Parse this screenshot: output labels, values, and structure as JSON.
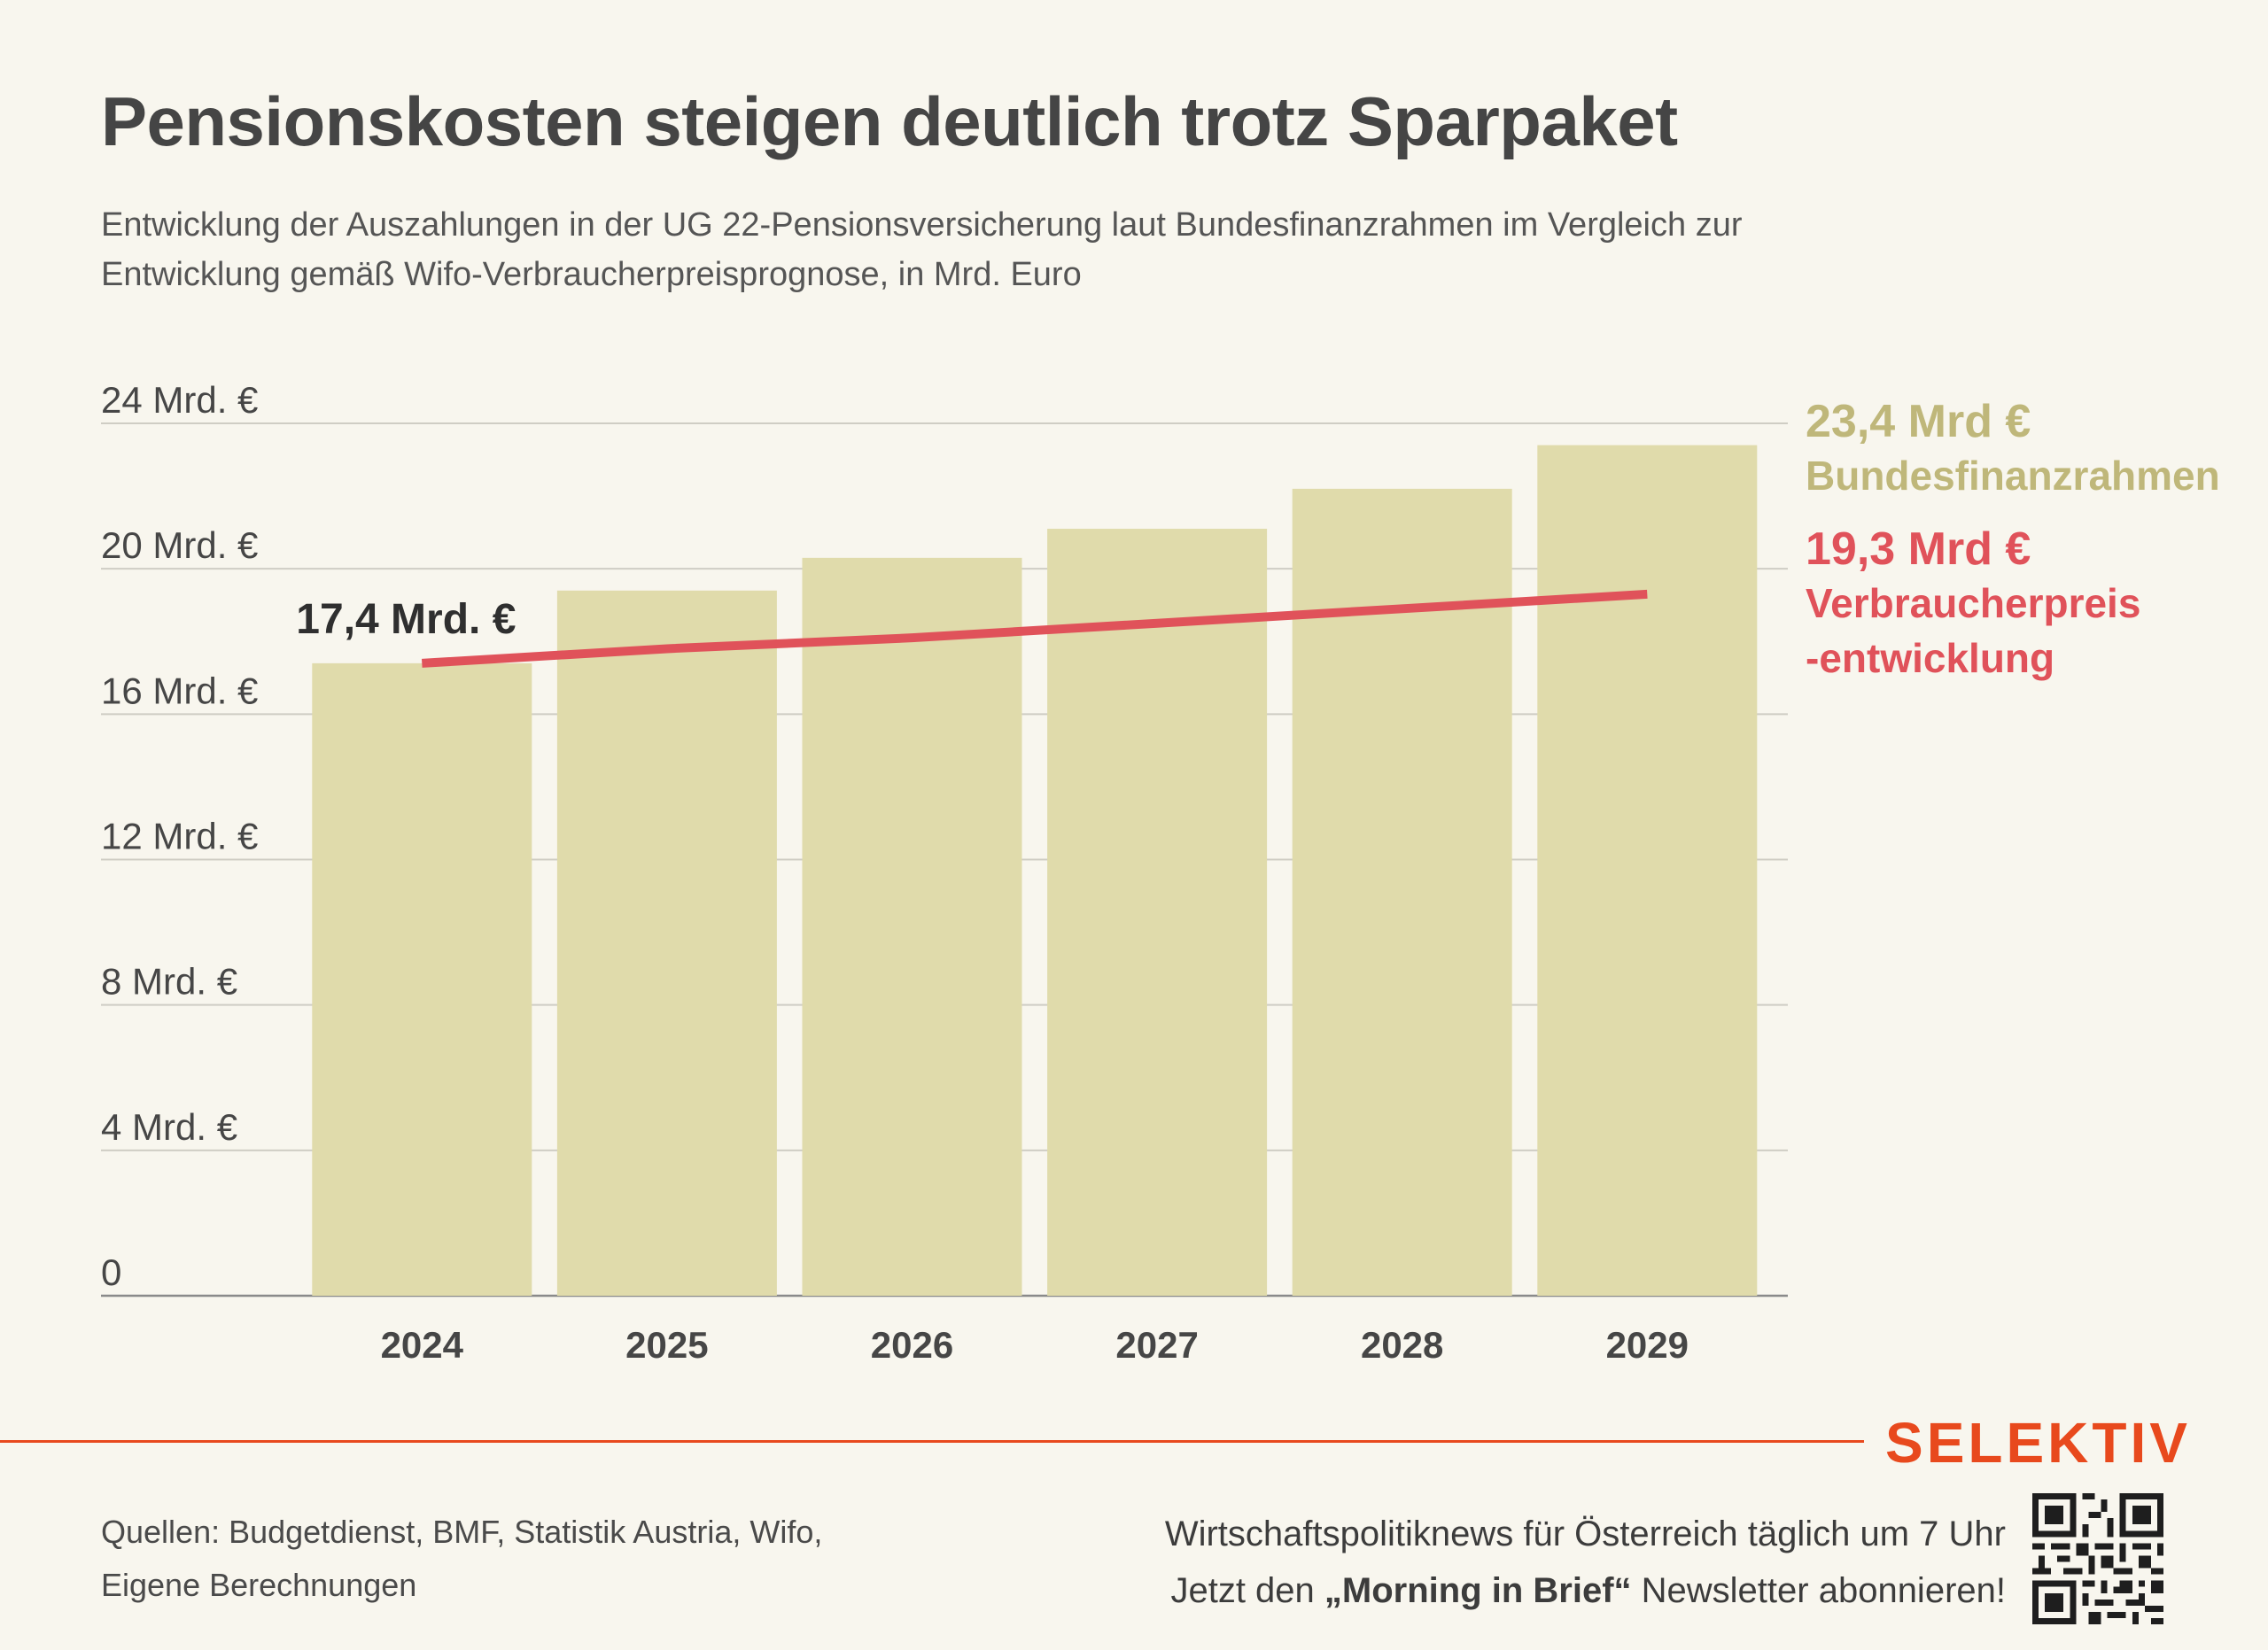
{
  "header": {
    "title": "Pensionskosten steigen deutlich trotz Sparpaket",
    "subtitle": "Entwicklung der Auszahlungen in der UG 22-Pensionsversicherung laut Bundesfinanzrahmen im Vergleich zur Entwicklung gemäß Wifo-Verbraucherpreisprognose, in Mrd. Euro"
  },
  "chart_data": {
    "type": "bar",
    "categories": [
      "2024",
      "2025",
      "2026",
      "2027",
      "2028",
      "2029"
    ],
    "series": [
      {
        "name": "Bundesfinanzrahmen",
        "type": "bar",
        "values": [
          17.4,
          19.4,
          20.3,
          21.1,
          22.2,
          23.4
        ],
        "color": "#e0dbab"
      },
      {
        "name": "Verbraucherpreis-entwicklung",
        "type": "line",
        "values": [
          17.4,
          17.8,
          18.1,
          18.5,
          18.9,
          19.3
        ],
        "color": "#e0525a"
      }
    ],
    "ylim": [
      0,
      24
    ],
    "yticks": [
      0,
      4,
      8,
      12,
      16,
      20,
      24
    ],
    "ytick_labels": [
      "0",
      "4 Mrd. €",
      "8 Mrd. €",
      "12 Mrd. €",
      "16 Mrd. €",
      "20 Mrd. €",
      "24 Mrd. €"
    ],
    "grid": true,
    "annotations": [
      {
        "category": "2024",
        "text": "17,4 Mrd. €"
      }
    ],
    "legend": {
      "placement": "right",
      "bar_value": "23,4 Mrd €",
      "bar_name": "Bundesfinanzrahmen",
      "line_value": "19,3 Mrd €",
      "line_name_1": "Verbraucherpreis",
      "line_name_2": "-entwicklung"
    }
  },
  "footer": {
    "brand": "SELEKTIV",
    "sources_1": "Quellen: Budgetdienst, BMF, Statistik Austria, Wifo,",
    "sources_2": "Eigene Berechnungen",
    "promo_1": "Wirtschaftspolitiknews für Österreich täglich um 7 Uhr",
    "promo_2_pre": "Jetzt den ",
    "promo_2_bold": "„Morning in Brief“",
    "promo_2_post": " Newsletter abonnieren!"
  },
  "colors": {
    "background": "#f8f6ee",
    "bar": "#e0dbab",
    "line": "#e0525a",
    "brand": "#e8491d",
    "legend_bar_text": "#bfb77a"
  }
}
